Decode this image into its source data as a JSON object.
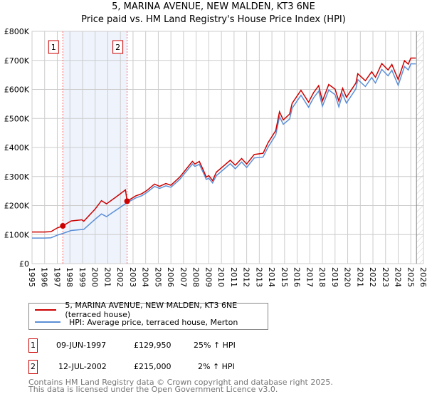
{
  "title": "5, MARINA AVENUE, NEW MALDEN, KT3 6NE",
  "subtitle": "Price paid vs. HM Land Registry's House Price Index (HPI)",
  "chart_data": {
    "type": "line",
    "xlim": [
      1995,
      2026
    ],
    "ylim": [
      0,
      800000
    ],
    "x_ticks": [
      "1995",
      "1996",
      "1997",
      "1998",
      "1999",
      "2000",
      "2001",
      "2002",
      "2003",
      "2004",
      "2005",
      "2006",
      "2007",
      "2008",
      "2009",
      "2010",
      "2011",
      "2012",
      "2013",
      "2014",
      "2015",
      "2016",
      "2017",
      "2018",
      "2019",
      "2020",
      "2021",
      "2022",
      "2023",
      "2024",
      "2025",
      "2026"
    ],
    "y_ticks": [
      "£0",
      "£100K",
      "£200K",
      "£300K",
      "£400K",
      "£500K",
      "£600K",
      "£700K",
      "£800K"
    ],
    "grid": true,
    "shaded_between": [
      1997.44,
      2002.53
    ],
    "forecast_hatch_from": 2025.45,
    "series": [
      {
        "name": "5, MARINA AVENUE, NEW MALDEN, KT3 6NE (terraced house)",
        "color": "#cc0000",
        "x": [
          1995,
          1996,
          1996.5,
          1997,
          1997.44,
          1998.1,
          1998.95,
          1999.1,
          2000,
          2000.5,
          2000.9,
          2001.7,
          2002.4,
          2002.53,
          2003.2,
          2003.7,
          2004.1,
          2004.7,
          2005.1,
          2005.6,
          2006,
          2006.7,
          2007.7,
          2007.9,
          2008.25,
          2008.6,
          2008.8,
          2009,
          2009.3,
          2009.6,
          2010.7,
          2011.1,
          2011.6,
          2012,
          2012.6,
          2013.3,
          2013.7,
          2014.3,
          2014.6,
          2014.9,
          2015.4,
          2015.6,
          2016.3,
          2016.9,
          2017.3,
          2017.7,
          2018,
          2018.5,
          2019,
          2019.3,
          2019.6,
          2019.9,
          2020.65,
          2020.8,
          2021.4,
          2021.9,
          2022.2,
          2022.7,
          2023.2,
          2023.5,
          2024,
          2024.5,
          2024.8,
          2025,
          2025.4
        ],
        "y": [
          109000,
          109000,
          110000,
          123000,
          129950,
          147000,
          151000,
          146000,
          188000,
          217000,
          206000,
          231000,
          254000,
          215000,
          233000,
          241000,
          252000,
          274000,
          266000,
          276000,
          270000,
          298000,
          352000,
          343000,
          352000,
          319000,
          298000,
          303000,
          286000,
          315000,
          356000,
          339000,
          362000,
          343000,
          376000,
          380000,
          417000,
          458000,
          523000,
          495000,
          515000,
          552000,
          597000,
          556000,
          589000,
          613000,
          560000,
          617000,
          601000,
          560000,
          604000,
          573000,
          622000,
          654000,
          630000,
          661000,
          642000,
          689000,
          667000,
          686000,
          634000,
          699000,
          687000,
          708000,
          708000
        ]
      },
      {
        "name": "HPI: Average price, terraced house, Merton",
        "color": "#5b8fd6",
        "x": [
          1995,
          1996,
          1996.5,
          1997,
          1997.44,
          1998.1,
          1999.1,
          2000,
          2000.5,
          2000.9,
          2001.85,
          2002.53,
          2003.2,
          2003.7,
          2004.1,
          2004.7,
          2005.1,
          2005.6,
          2006,
          2006.7,
          2007.7,
          2007.9,
          2008.25,
          2008.6,
          2008.8,
          2009,
          2009.3,
          2009.6,
          2010.7,
          2011.1,
          2011.6,
          2012,
          2012.6,
          2013.3,
          2013.7,
          2014.3,
          2014.6,
          2014.9,
          2015.4,
          2015.6,
          2016.3,
          2016.9,
          2017.3,
          2017.7,
          2018,
          2018.5,
          2019,
          2019.3,
          2019.6,
          2019.9,
          2020.65,
          2020.8,
          2021.4,
          2021.9,
          2022.2,
          2022.7,
          2023.2,
          2023.5,
          2024,
          2024.5,
          2024.8,
          2025,
          2025.4
        ],
        "y": [
          88000,
          88000,
          89000,
          98000,
          104000,
          114000,
          118000,
          153000,
          171000,
          162000,
          190000,
          210000,
          226000,
          234000,
          245000,
          266000,
          259000,
          268000,
          263000,
          290000,
          343000,
          335000,
          342000,
          310000,
          290000,
          294000,
          278000,
          303000,
          344000,
          327000,
          350000,
          331000,
          364000,
          367000,
          402000,
          443000,
          506000,
          480000,
          498000,
          535000,
          580000,
          539000,
          571000,
          594000,
          542000,
          598000,
          582000,
          540000,
          584000,
          553000,
          602000,
          634000,
          610000,
          641000,
          622000,
          669000,
          647000,
          666000,
          614000,
          679000,
          667000,
          688000,
          688000
        ]
      }
    ],
    "markers": [
      {
        "label": "1",
        "x": 1997.44,
        "y": 129950
      },
      {
        "label": "2",
        "x": 2002.53,
        "y": 215000
      }
    ]
  },
  "legend": {
    "series1": "5, MARINA AVENUE, NEW MALDEN, KT3 6NE (terraced house)",
    "series2": "HPI: Average price, terraced house, Merton"
  },
  "sales": [
    {
      "num": "1",
      "date": "09-JUN-1997",
      "price": "£129,950",
      "hpi": "25% ↑ HPI"
    },
    {
      "num": "2",
      "date": "12-JUL-2002",
      "price": "£215,000",
      "hpi": "2% ↑ HPI"
    }
  ],
  "footer": {
    "line1": "Contains HM Land Registry data © Crown copyright and database right 2025.",
    "line2": "This data is licensed under the Open Government Licence v3.0."
  },
  "colors": {
    "red": "#cc0000",
    "blue": "#5b8fd6",
    "shade": "#eef3fc"
  }
}
